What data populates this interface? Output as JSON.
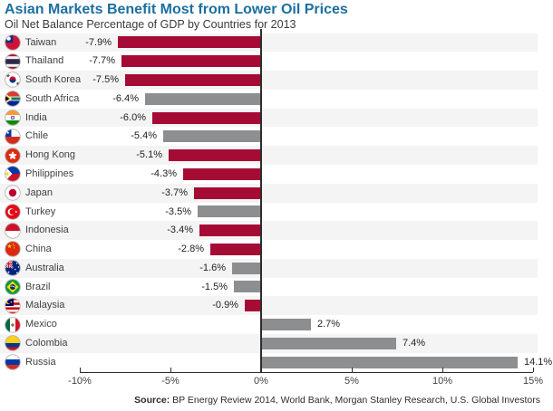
{
  "header": {
    "title": "Asian Markets Benefit Most from Lower Oil Prices",
    "subtitle": "Oil Net Balance Percentage of GDP by Countries for 2013"
  },
  "source_note": {
    "label": "Source:",
    "text": " BP Energy Review 2014, World Bank, Morgan Stanley Research, U.S. Global Investors"
  },
  "colors": {
    "title_blue": "#1b6fa0",
    "bar_red": "#a50c35",
    "bar_gray": "#8c8e90",
    "row_band_gray": "#f4f4f4",
    "axis_dark": "#2e2d2c",
    "text_dark": "#3f3f41"
  },
  "chart_data": {
    "type": "bar",
    "orientation": "horizontal",
    "title": "Asian Markets Benefit Most from Lower Oil Prices",
    "subtitle": "Oil Net Balance Percentage of GDP by Countries for 2013",
    "xlim": [
      -10,
      15
    ],
    "x_ticks": [
      "-10%",
      "-5%",
      "0%",
      "5%",
      "10%",
      "15%"
    ],
    "x_tick_values": [
      -10,
      -5,
      0,
      5,
      10,
      15
    ],
    "grid": false,
    "legend": "none",
    "categories": [
      "Taiwan",
      "Thailand",
      "South Korea",
      "South Africa",
      "India",
      "Chile",
      "Hong Kong",
      "Philippines",
      "Japan",
      "Turkey",
      "Indonesia",
      "China",
      "Australia",
      "Brazil",
      "Malaysia",
      "Mexico",
      "Colombia",
      "Russia"
    ],
    "values": [
      -7.9,
      -7.7,
      -7.5,
      -6.4,
      -6.0,
      -5.4,
      -5.1,
      -4.3,
      -3.7,
      -3.5,
      -3.4,
      -2.8,
      -1.6,
      -1.5,
      -0.9,
      2.7,
      7.4,
      14.1
    ],
    "value_labels": [
      "-7.9%",
      "-7.7%",
      "-7.5%",
      "-6.4%",
      "-6.0%",
      "-5.4%",
      "-5.1%",
      "-4.3%",
      "-3.7%",
      "-3.5%",
      "-3.4%",
      "-2.8%",
      "-1.6%",
      "-1.5%",
      "-0.9%",
      "2.7%",
      "7.4%",
      "14.1%"
    ],
    "bar_colors": [
      "red",
      "red",
      "red",
      "gray",
      "red",
      "gray",
      "red",
      "red",
      "red",
      "gray",
      "red",
      "red",
      "gray",
      "gray",
      "red",
      "gray",
      "gray",
      "gray"
    ],
    "flag_icons": [
      "taiwan",
      "thailand",
      "south-korea",
      "south-africa",
      "india",
      "chile",
      "hong-kong",
      "philippines",
      "japan",
      "turkey",
      "indonesia",
      "china",
      "australia",
      "brazil",
      "malaysia",
      "mexico",
      "colombia",
      "russia"
    ]
  }
}
